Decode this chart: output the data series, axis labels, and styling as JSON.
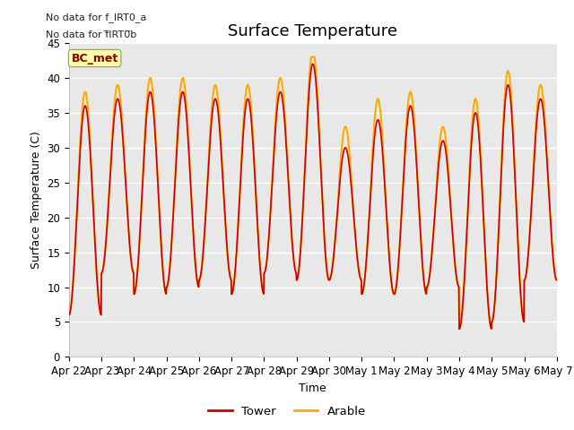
{
  "title": "Surface Temperature",
  "ylabel": "Surface Temperature (C)",
  "xlabel": "Time",
  "ylim": [
    0,
    45
  ],
  "background_color": "#e8e8e8",
  "fig_background": "#ffffff",
  "grid_color": "#ffffff",
  "tower_color": "#cc0000",
  "arable_color": "#ffaa00",
  "legend_labels": [
    "Tower",
    "Arable"
  ],
  "no_data_text1": "No data for f_IRT0_a",
  "no_data_text2": "No data for f̅IRT0̅b",
  "bc_met_label": "BC_met",
  "bc_met_box_color": "#ffffaa",
  "bc_met_text_color": "#880000",
  "xtick_labels": [
    "Apr 22",
    "Apr 23",
    "Apr 24",
    "Apr 25",
    "Apr 26",
    "Apr 27",
    "Apr 28",
    "Apr 29",
    "Apr 30",
    "May 1",
    "May 2",
    "May 3",
    "May 4",
    "May 5",
    "May 6",
    "May 7"
  ],
  "ytick_values": [
    0,
    5,
    10,
    15,
    20,
    25,
    30,
    35,
    40,
    45
  ],
  "title_fontsize": 13,
  "label_fontsize": 9,
  "tick_fontsize": 8.5,
  "linewidth_tower": 1.2,
  "linewidth_arable": 1.5,
  "n_points_per_day": 96,
  "day_peaks": [
    36,
    37,
    38,
    38,
    37,
    37,
    38,
    42,
    30,
    34,
    36,
    31,
    35,
    39,
    37
  ],
  "day_mins": [
    6,
    12,
    9,
    10,
    11,
    9,
    12,
    11,
    11,
    9,
    9,
    10,
    4,
    5,
    11
  ],
  "arable_extra": [
    2,
    2,
    2,
    2,
    2,
    2,
    2,
    2,
    3,
    3,
    2,
    2,
    2,
    2,
    2
  ]
}
